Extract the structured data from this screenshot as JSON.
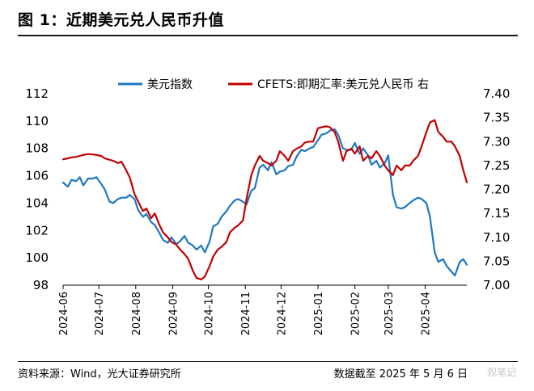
{
  "figure": {
    "title": "图 1：近期美元兑人民币升值",
    "source": "资料来源：Wind，光大证券研究所",
    "cutoff": "数据截至 2025 年 5 月 6 日",
    "watermark": "观笔记"
  },
  "colors": {
    "usd_index": "#1f77c0",
    "cfets_usdcny": "#c00000"
  },
  "chart_data": {
    "type": "line",
    "title": "",
    "legend_position": "top",
    "grid": false,
    "x_tick_labels": [
      "2024-06",
      "2024-07",
      "2024-08",
      "2024-09",
      "2024-10",
      "2024-11",
      "2024-12",
      "2025-01",
      "2025-02",
      "2025-03",
      "2025-04"
    ],
    "x_range": [
      "2024-06-01",
      "2025-05-06"
    ],
    "y_left": {
      "ticks": [
        98,
        100,
        102,
        104,
        106,
        108,
        110,
        112
      ],
      "range": [
        98,
        112
      ]
    },
    "y_right": {
      "ticks": [
        "7.00",
        "7.05",
        "7.10",
        "7.15",
        "7.20",
        "7.25",
        "7.30",
        "7.35",
        "7.40"
      ],
      "range": [
        7.0,
        7.4
      ]
    },
    "series": [
      {
        "name": "美元指数",
        "axis": "left",
        "x": [
          "2024-06-01",
          "2024-06-05",
          "2024-06-08",
          "2024-06-12",
          "2024-06-15",
          "2024-06-18",
          "2024-06-22",
          "2024-06-26",
          "2024-06-29",
          "2024-07-03",
          "2024-07-06",
          "2024-07-10",
          "2024-07-13",
          "2024-07-17",
          "2024-07-20",
          "2024-07-24",
          "2024-07-27",
          "2024-07-31",
          "2024-08-03",
          "2024-08-07",
          "2024-08-10",
          "2024-08-14",
          "2024-08-17",
          "2024-08-21",
          "2024-08-24",
          "2024-08-28",
          "2024-08-31",
          "2024-09-04",
          "2024-09-07",
          "2024-09-11",
          "2024-09-14",
          "2024-09-18",
          "2024-09-21",
          "2024-09-25",
          "2024-09-28",
          "2024-10-02",
          "2024-10-05",
          "2024-10-09",
          "2024-10-12",
          "2024-10-16",
          "2024-10-19",
          "2024-10-23",
          "2024-10-26",
          "2024-10-30",
          "2024-11-02",
          "2024-11-06",
          "2024-11-09",
          "2024-11-13",
          "2024-11-16",
          "2024-11-20",
          "2024-11-23",
          "2024-11-27",
          "2024-11-30",
          "2024-12-04",
          "2024-12-07",
          "2024-12-11",
          "2024-12-14",
          "2024-12-18",
          "2024-12-21",
          "2024-12-25",
          "2024-12-28",
          "2025-01-01",
          "2025-01-04",
          "2025-01-08",
          "2025-01-11",
          "2025-01-15",
          "2025-01-18",
          "2025-01-22",
          "2025-01-25",
          "2025-01-29",
          "2025-02-01",
          "2025-02-05",
          "2025-02-08",
          "2025-02-12",
          "2025-02-15",
          "2025-02-19",
          "2025-02-22",
          "2025-02-26",
          "2025-03-01",
          "2025-03-05",
          "2025-03-08",
          "2025-03-12",
          "2025-03-15",
          "2025-03-19",
          "2025-03-22",
          "2025-03-26",
          "2025-03-29",
          "2025-04-02",
          "2025-04-05",
          "2025-04-09",
          "2025-04-12",
          "2025-04-16",
          "2025-04-19",
          "2025-04-23",
          "2025-04-26",
          "2025-04-30",
          "2025-05-03",
          "2025-05-06"
        ],
        "values": [
          105.5,
          105.2,
          105.7,
          105.6,
          105.9,
          105.3,
          105.8,
          105.8,
          105.9,
          105.4,
          105.0,
          104.1,
          104.0,
          104.3,
          104.4,
          104.4,
          104.6,
          104.3,
          103.5,
          103.0,
          103.2,
          102.6,
          102.4,
          101.8,
          101.3,
          101.1,
          101.5,
          101.0,
          101.2,
          101.6,
          101.1,
          100.9,
          100.6,
          100.9,
          100.4,
          101.2,
          102.3,
          102.5,
          103.0,
          103.4,
          103.8,
          104.2,
          104.3,
          104.1,
          103.9,
          104.9,
          105.1,
          106.6,
          106.8,
          106.4,
          107.0,
          106.1,
          106.3,
          106.4,
          106.7,
          106.8,
          107.4,
          107.9,
          107.8,
          108.0,
          108.1,
          108.6,
          109.0,
          109.1,
          109.3,
          109.4,
          109.0,
          108.0,
          107.9,
          107.9,
          108.4,
          107.6,
          108.0,
          107.5,
          106.8,
          107.1,
          106.6,
          106.9,
          107.5,
          104.6,
          103.7,
          103.6,
          103.7,
          104.0,
          104.2,
          104.4,
          104.3,
          104.0,
          103.0,
          100.4,
          99.7,
          99.9,
          99.4,
          99.0,
          98.7,
          99.7,
          99.9,
          99.5
        ]
      },
      {
        "name": "CFETS:即期汇率:美元兑人民币",
        "axis": "right",
        "x": [
          "2024-06-01",
          "2024-06-05",
          "2024-06-08",
          "2024-06-12",
          "2024-06-15",
          "2024-06-18",
          "2024-06-22",
          "2024-06-26",
          "2024-06-29",
          "2024-07-03",
          "2024-07-06",
          "2024-07-10",
          "2024-07-13",
          "2024-07-17",
          "2024-07-20",
          "2024-07-24",
          "2024-07-27",
          "2024-07-31",
          "2024-08-03",
          "2024-08-07",
          "2024-08-10",
          "2024-08-14",
          "2024-08-17",
          "2024-08-21",
          "2024-08-24",
          "2024-08-28",
          "2024-08-31",
          "2024-09-04",
          "2024-09-07",
          "2024-09-11",
          "2024-09-14",
          "2024-09-18",
          "2024-09-21",
          "2024-09-25",
          "2024-09-28",
          "2024-10-02",
          "2024-10-05",
          "2024-10-09",
          "2024-10-12",
          "2024-10-16",
          "2024-10-19",
          "2024-10-23",
          "2024-10-26",
          "2024-10-30",
          "2024-11-02",
          "2024-11-06",
          "2024-11-09",
          "2024-11-13",
          "2024-11-16",
          "2024-11-20",
          "2024-11-23",
          "2024-11-27",
          "2024-11-30",
          "2024-12-04",
          "2024-12-07",
          "2024-12-11",
          "2024-12-14",
          "2024-12-18",
          "2024-12-21",
          "2024-12-25",
          "2024-12-28",
          "2025-01-01",
          "2025-01-04",
          "2025-01-08",
          "2025-01-11",
          "2025-01-15",
          "2025-01-18",
          "2025-01-22",
          "2025-01-25",
          "2025-01-29",
          "2025-02-01",
          "2025-02-05",
          "2025-02-08",
          "2025-02-12",
          "2025-02-15",
          "2025-02-19",
          "2025-02-22",
          "2025-02-26",
          "2025-03-01",
          "2025-03-05",
          "2025-03-08",
          "2025-03-12",
          "2025-03-15",
          "2025-03-19",
          "2025-03-22",
          "2025-03-26",
          "2025-03-29",
          "2025-04-02",
          "2025-04-05",
          "2025-04-09",
          "2025-04-12",
          "2025-04-16",
          "2025-04-19",
          "2025-04-23",
          "2025-04-26",
          "2025-04-30",
          "2025-05-03",
          "2025-05-06"
        ],
        "values": [
          7.263,
          7.265,
          7.267,
          7.268,
          7.27,
          7.272,
          7.274,
          7.273,
          7.272,
          7.27,
          7.265,
          7.262,
          7.26,
          7.255,
          7.258,
          7.24,
          7.225,
          7.19,
          7.175,
          7.155,
          7.16,
          7.14,
          7.15,
          7.125,
          7.11,
          7.1,
          7.09,
          7.085,
          7.075,
          7.065,
          7.055,
          7.03,
          7.015,
          7.012,
          7.018,
          7.04,
          7.06,
          7.075,
          7.08,
          7.09,
          7.11,
          7.12,
          7.125,
          7.135,
          7.18,
          7.23,
          7.25,
          7.27,
          7.26,
          7.255,
          7.25,
          7.26,
          7.28,
          7.27,
          7.26,
          7.28,
          7.285,
          7.29,
          7.298,
          7.3,
          7.3,
          7.328,
          7.33,
          7.332,
          7.33,
          7.32,
          7.3,
          7.26,
          7.28,
          7.285,
          7.275,
          7.29,
          7.26,
          7.27,
          7.265,
          7.28,
          7.27,
          7.25,
          7.24,
          7.23,
          7.25,
          7.24,
          7.25,
          7.25,
          7.26,
          7.27,
          7.29,
          7.32,
          7.34,
          7.345,
          7.32,
          7.31,
          7.3,
          7.3,
          7.29,
          7.27,
          7.24,
          7.215
        ]
      }
    ]
  }
}
